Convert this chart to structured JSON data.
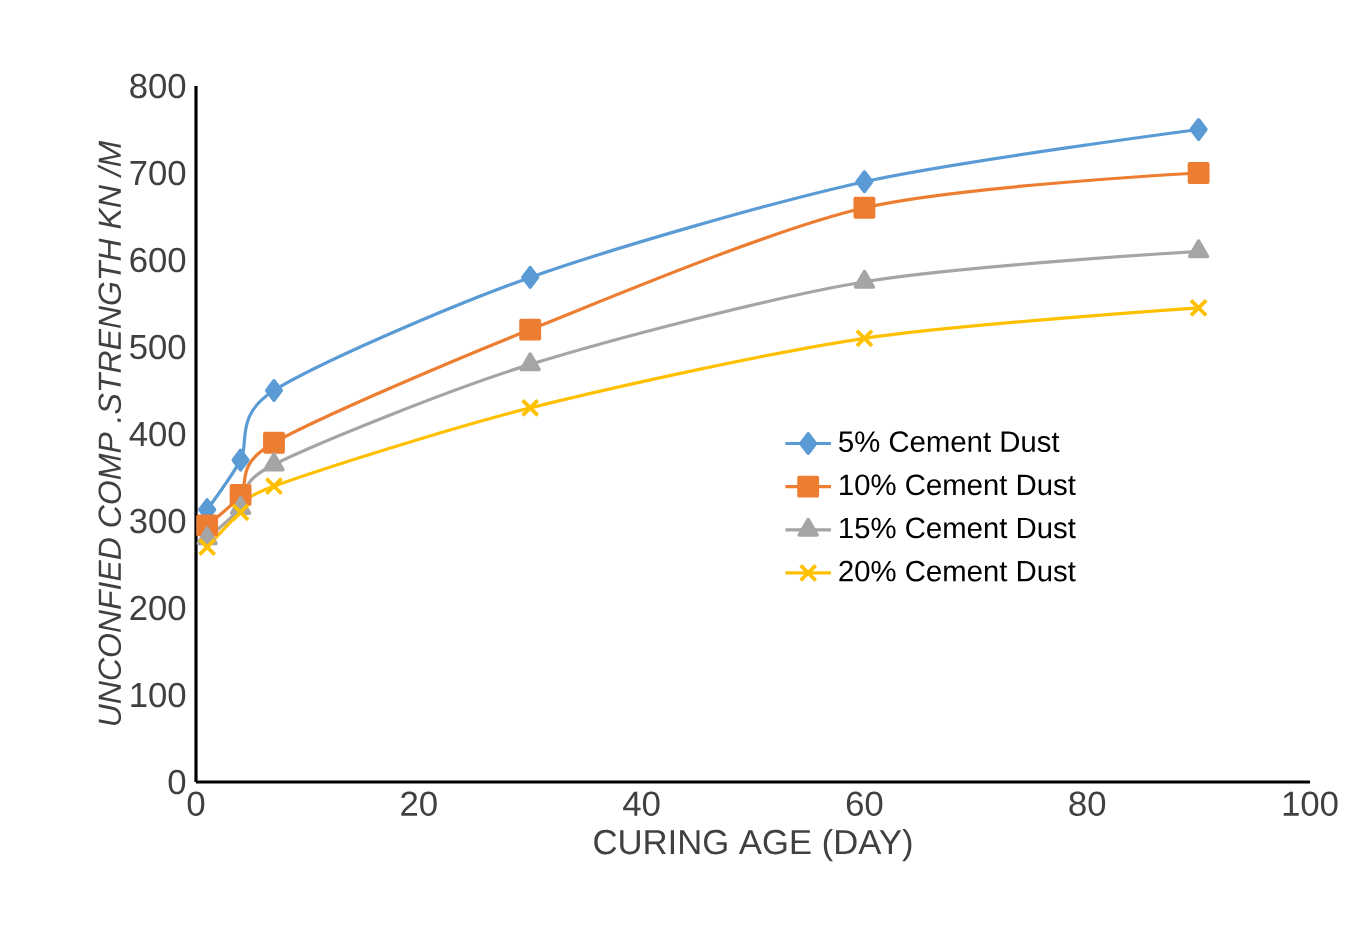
{
  "chart_data": {
    "type": "line",
    "xlabel": "CURING AGE (DAY)",
    "ylabel": "UNCONFIED COMP .STRENGTH KN /M",
    "x": [
      1,
      4,
      7,
      30,
      60,
      90
    ],
    "series": [
      {
        "name": "5% Cement  Dust",
        "color": "#5b9bd5",
        "marker": "diamond",
        "values": [
          313,
          370,
          450,
          580,
          690,
          750
        ]
      },
      {
        "name": "10% Cement  Dust",
        "color": "#ed7d31",
        "marker": "square",
        "values": [
          295,
          330,
          390,
          520,
          660,
          700
        ]
      },
      {
        "name": "15% Cement  Dust",
        "color": "#a5a5a5",
        "marker": "triangle",
        "values": [
          280,
          315,
          365,
          480,
          575,
          610
        ]
      },
      {
        "name": "20% Cement  Dust",
        "color": "#ffc000",
        "marker": "cross",
        "values": [
          270,
          310,
          340,
          430,
          510,
          545
        ]
      }
    ],
    "xlim": [
      0,
      100
    ],
    "xticks": [
      0,
      20,
      40,
      60,
      80,
      100
    ],
    "ylim": [
      0,
      800
    ],
    "yticks": [
      0,
      100,
      200,
      300,
      400,
      500,
      600,
      700,
      800
    ],
    "grid": false,
    "legend": "right",
    "line_style": "solid"
  }
}
